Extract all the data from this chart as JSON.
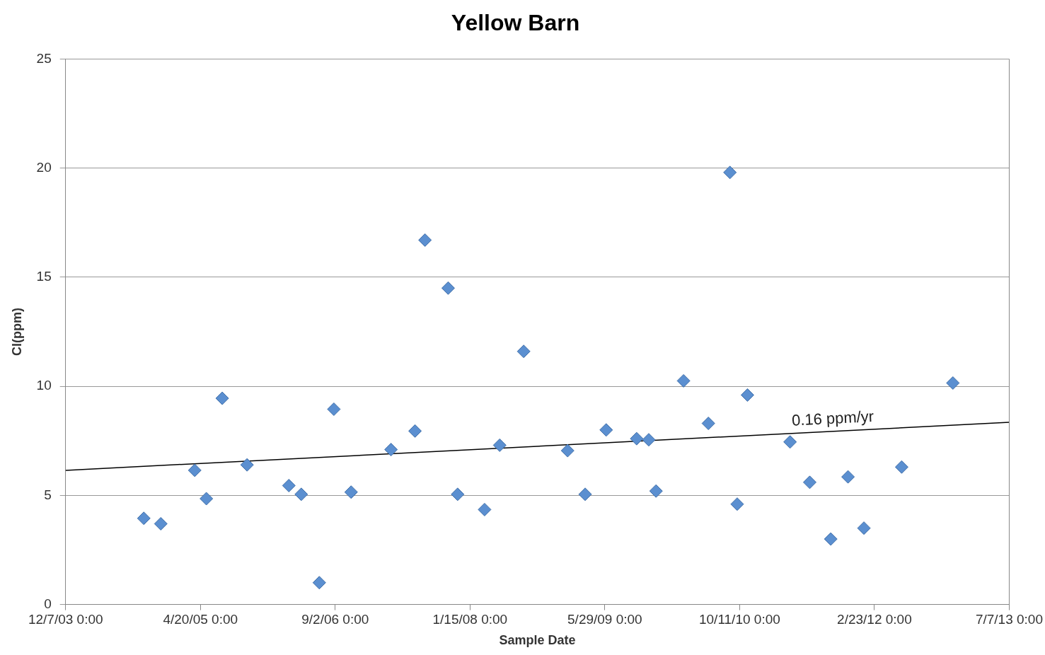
{
  "chart_data": {
    "type": "scatter",
    "title": "Yellow Barn",
    "xlabel": "Sample Date",
    "ylabel": "Cl(ppm)",
    "xlim": [
      "2003-12-07",
      "2013-07-07"
    ],
    "xticks": [
      {
        "value": "2003-12-07",
        "label": "12/7/03 0:00"
      },
      {
        "value": "2005-04-20",
        "label": "4/20/05 0:00"
      },
      {
        "value": "2006-09-02",
        "label": "9/2/06 0:00"
      },
      {
        "value": "2008-01-15",
        "label": "1/15/08 0:00"
      },
      {
        "value": "2009-05-29",
        "label": "5/29/09 0:00"
      },
      {
        "value": "2010-10-11",
        "label": "10/11/10 0:00"
      },
      {
        "value": "2012-02-23",
        "label": "2/23/12 0:00"
      },
      {
        "value": "2013-07-07",
        "label": "7/7/13 0:00"
      }
    ],
    "ylim": [
      0,
      25
    ],
    "yticks": [
      0,
      5,
      10,
      15,
      20,
      25
    ],
    "grid": "y",
    "legend": false,
    "series": [
      {
        "marker": "diamond",
        "color": "#5b8fd0",
        "x": [
          "2004-09-22",
          "2004-11-24",
          "2005-03-30",
          "2005-05-12",
          "2005-07-10",
          "2005-10-10",
          "2006-03-14",
          "2006-04-29",
          "2006-07-05",
          "2006-08-28",
          "2006-10-31",
          "2007-03-28",
          "2007-06-25",
          "2007-08-01",
          "2007-10-26",
          "2007-11-30",
          "2008-03-09",
          "2008-05-04",
          "2008-08-01",
          "2009-01-11",
          "2009-03-17",
          "2009-06-03",
          "2009-09-24",
          "2009-11-08",
          "2009-12-05",
          "2010-03-17",
          "2010-06-17",
          "2010-09-05",
          "2010-10-02",
          "2010-11-09",
          "2011-04-16",
          "2011-06-28",
          "2011-09-14",
          "2011-11-17",
          "2012-01-15",
          "2012-06-03",
          "2012-12-10"
        ],
        "values": [
          3.95,
          3.7,
          6.15,
          4.85,
          9.45,
          6.4,
          5.45,
          5.05,
          1.0,
          8.95,
          5.15,
          7.1,
          7.95,
          16.7,
          14.5,
          5.05,
          4.35,
          7.3,
          11.6,
          7.05,
          5.05,
          8.0,
          7.6,
          7.55,
          5.2,
          10.25,
          8.3,
          19.8,
          4.6,
          9.6,
          7.45,
          5.6,
          3.0,
          5.85,
          3.5,
          6.3,
          10.15
        ]
      },
      {
        "type": "line",
        "marker": "none",
        "color": "#000000",
        "x": [
          "2003-12-07",
          "2013-07-07"
        ],
        "values": [
          6.15,
          8.35
        ]
      }
    ],
    "annotations": [
      "0.16 ppm/yr"
    ]
  }
}
